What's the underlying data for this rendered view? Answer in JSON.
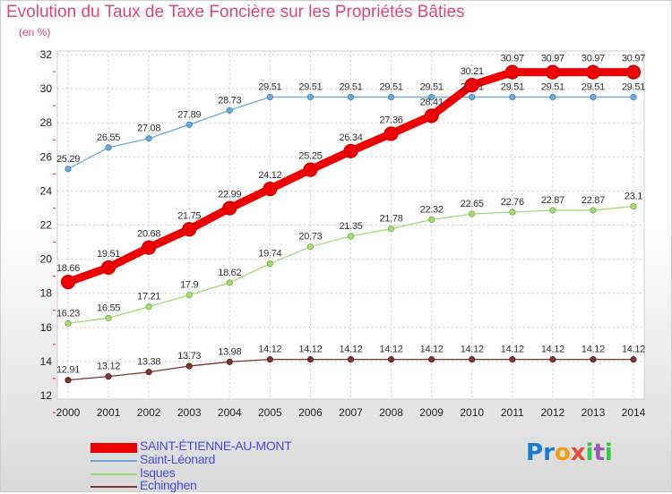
{
  "header": {
    "title": "Evolution du Taux de Taxe Foncière sur les Propriétés Bâties",
    "subtitle": "(en %)"
  },
  "logo": {
    "text": "Proxiti",
    "letters": [
      "P",
      "r",
      "o",
      "x",
      "i",
      "t",
      "i"
    ],
    "colors": [
      "#1a7bd6",
      "#1a7bd6",
      "#f39c12",
      "#e74c3c",
      "#2ecc40",
      "#9b59b6",
      "#2ecc40"
    ]
  },
  "chart_data": {
    "type": "line",
    "x": [
      "2000",
      "2001",
      "2002",
      "2003",
      "2004",
      "2005",
      "2006",
      "2007",
      "2008",
      "2009",
      "2010",
      "2011",
      "2012",
      "2013",
      "2014"
    ],
    "ylim": [
      12,
      32
    ],
    "yticks": [
      "12",
      "14",
      "16",
      "18",
      "20",
      "22",
      "24",
      "26",
      "28",
      "30",
      "32"
    ],
    "grid": true,
    "legend_position": "bottom-left",
    "series": [
      {
        "name": "SAINT-ÉTIENNE-AU-MONT",
        "color": "#ee0000",
        "width": "thick",
        "values": [
          18.66,
          19.51,
          20.68,
          21.75,
          22.99,
          24.12,
          25.25,
          26.34,
          27.36,
          28.41,
          30.21,
          30.97,
          30.97,
          30.97,
          30.97
        ],
        "labels": [
          "18.66",
          "19.51",
          "20.68",
          "21.75",
          "22.99",
          "24.12",
          "25.25",
          "26.34",
          "27.36",
          "28.41",
          "30.21",
          "30.97",
          "30.97",
          "30.97",
          "30.97"
        ]
      },
      {
        "name": "Saint-Léonard",
        "color": "#6fa8d6",
        "width": "thin",
        "values": [
          25.29,
          26.55,
          27.08,
          27.89,
          28.73,
          29.51,
          29.51,
          29.51,
          29.51,
          29.51,
          29.51,
          29.51,
          29.51,
          29.51,
          29.51
        ],
        "labels": [
          "25.29",
          "26.55",
          "27.08",
          "27.89",
          "28.73",
          "29.51",
          "29.51",
          "29.51",
          "29.51",
          "29.51",
          "29.51",
          "29.51",
          "29.51",
          "29.51",
          "29.51"
        ]
      },
      {
        "name": "Isques",
        "color": "#a8d878",
        "width": "thin",
        "values": [
          16.23,
          16.55,
          17.21,
          17.9,
          18.62,
          19.74,
          20.73,
          21.35,
          21.78,
          22.32,
          22.65,
          22.76,
          22.87,
          22.87,
          23.1
        ],
        "labels": [
          "16.23",
          "16.55",
          "17.21",
          "17.9",
          "18.62",
          "19.74",
          "20.73",
          "21.35",
          "21.78",
          "22.32",
          "22.65",
          "22.76",
          "22.87",
          "22.87",
          "23.1"
        ]
      },
      {
        "name": "Echinghen",
        "color": "#7a3535",
        "width": "thin",
        "values": [
          12.91,
          13.12,
          13.38,
          13.73,
          13.98,
          14.12,
          14.12,
          14.12,
          14.12,
          14.12,
          14.12,
          14.12,
          14.12,
          14.12,
          14.12
        ],
        "labels": [
          "12.91",
          "13.12",
          "13.38",
          "13.73",
          "13.98",
          "14.12",
          "14.12",
          "14.12",
          "14.12",
          "14.12",
          "14.12",
          "14.12",
          "14.12",
          "14.12",
          "14.12"
        ]
      }
    ]
  }
}
